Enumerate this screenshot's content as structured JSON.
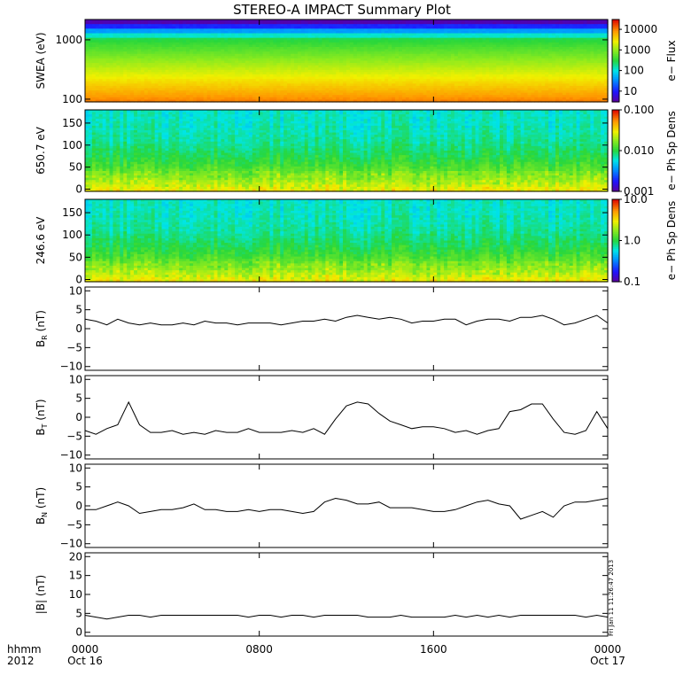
{
  "title": "STEREO-A IMPACT Summary Plot",
  "corner_label": {
    "line1": "hhmm",
    "line2": "2012"
  },
  "time_axis": {
    "ticks": [
      {
        "hhmm": "0000",
        "date": "Oct 16",
        "hours": 0
      },
      {
        "hhmm": "0800",
        "date": "",
        "hours": 8
      },
      {
        "hhmm": "1600",
        "date": "",
        "hours": 16
      },
      {
        "hhmm": "0000",
        "date": "Oct 17",
        "hours": 24
      }
    ],
    "range_hours": [
      0,
      24
    ]
  },
  "timestamp": "Fri Jan 11 11:26:47 2013",
  "chart_data": [
    {
      "type": "heatmap",
      "ylabel": "SWEA (eV)",
      "yscale": "log",
      "ylim": [
        90,
        2200
      ],
      "yticks": [
        "100",
        "1000"
      ],
      "yticks_values": [
        100,
        1000
      ],
      "colorbar": {
        "label": "e− Flux",
        "scale": "log",
        "range": [
          3,
          30000
        ],
        "ticks": [
          "10",
          "100",
          "1000",
          "10000"
        ],
        "tick_values": [
          10,
          100,
          1000,
          10000
        ]
      },
      "note": "energy spectrogram: highest flux at low energy (orange ~90-150 eV), falling to blue/purple near 1500-2000 eV"
    },
    {
      "type": "heatmap",
      "ylabel": "650.7 eV",
      "ylim": [
        -5,
        180
      ],
      "yticks": [
        "0",
        "50",
        "100",
        "150"
      ],
      "yticks_values": [
        0,
        50,
        100,
        150
      ],
      "colorbar": {
        "label": "e− Ph Sp Dens",
        "scale": "log",
        "range": [
          0.001,
          0.1
        ],
        "ticks": [
          "0.001",
          "0.010",
          "0.100"
        ],
        "tick_values": [
          0.001,
          0.01,
          0.1
        ]
      }
    },
    {
      "type": "heatmap",
      "ylabel": "246.6 eV",
      "ylim": [
        -5,
        180
      ],
      "yticks": [
        "0",
        "50",
        "100",
        "150"
      ],
      "yticks_values": [
        0,
        50,
        100,
        150
      ],
      "colorbar": {
        "label": "e− Ph Sp Dens",
        "scale": "log",
        "range": [
          0.1,
          10
        ],
        "ticks": [
          "0.1",
          "1.0",
          "10.0"
        ],
        "tick_values": [
          0.1,
          1,
          10
        ]
      }
    },
    {
      "type": "line",
      "ylabel": "B",
      "ylabel_sub": "R",
      "ylabel_unit": "(nT)",
      "ylim": [
        -11,
        11
      ],
      "yticks": [
        "−10",
        "−5",
        "0",
        "5",
        "10"
      ],
      "yticks_values": [
        -10,
        -5,
        0,
        5,
        10
      ],
      "x": [
        0,
        0.5,
        1,
        1.5,
        2,
        2.5,
        3,
        3.5,
        4,
        4.5,
        5,
        5.5,
        6,
        6.5,
        7,
        7.5,
        8,
        8.5,
        9,
        9.5,
        10,
        10.5,
        11,
        11.5,
        12,
        12.5,
        13,
        13.5,
        14,
        14.5,
        15,
        15.5,
        16,
        16.5,
        17,
        17.5,
        18,
        18.5,
        19,
        19.5,
        20,
        20.5,
        21,
        21.5,
        22,
        22.5,
        23,
        23.5,
        24
      ],
      "y": [
        2.5,
        2.0,
        1.0,
        2.5,
        1.5,
        1.0,
        1.5,
        1.0,
        1.0,
        1.5,
        1.0,
        2.0,
        1.5,
        1.5,
        1.0,
        1.5,
        1.5,
        1.5,
        1.0,
        1.5,
        2.0,
        2.0,
        2.5,
        2.0,
        3.0,
        3.5,
        3.0,
        2.5,
        3.0,
        2.5,
        1.5,
        2.0,
        2.0,
        2.5,
        2.5,
        1.0,
        2.0,
        2.5,
        2.5,
        2.0,
        3.0,
        3.0,
        3.5,
        2.5,
        1.0,
        1.5,
        2.5,
        3.5,
        1.5
      ]
    },
    {
      "type": "line",
      "ylabel": "B",
      "ylabel_sub": "T",
      "ylabel_unit": "(nT)",
      "ylim": [
        -11,
        11
      ],
      "yticks": [
        "−10",
        "−5",
        "0",
        "5",
        "10"
      ],
      "yticks_values": [
        -10,
        -5,
        0,
        5,
        10
      ],
      "x": [
        0,
        0.5,
        1,
        1.5,
        2,
        2.5,
        3,
        3.5,
        4,
        4.5,
        5,
        5.5,
        6,
        6.5,
        7,
        7.5,
        8,
        8.5,
        9,
        9.5,
        10,
        10.5,
        11,
        11.5,
        12,
        12.5,
        13,
        13.5,
        14,
        14.5,
        15,
        15.5,
        16,
        16.5,
        17,
        17.5,
        18,
        18.5,
        19,
        19.5,
        20,
        20.5,
        21,
        21.5,
        22,
        22.5,
        23,
        23.5,
        24
      ],
      "y": [
        -3.5,
        -4.5,
        -3.0,
        -2.0,
        4.0,
        -2.0,
        -4.0,
        -4.0,
        -3.5,
        -4.5,
        -4.0,
        -4.5,
        -3.5,
        -4.0,
        -4.0,
        -3.0,
        -4.0,
        -4.0,
        -4.0,
        -3.5,
        -4.0,
        -3.0,
        -4.5,
        -0.5,
        3.0,
        4.0,
        3.5,
        1.0,
        -1.0,
        -2.0,
        -3.0,
        -2.5,
        -2.5,
        -3.0,
        -4.0,
        -3.5,
        -4.5,
        -3.5,
        -3.0,
        1.5,
        2.0,
        3.5,
        3.5,
        -0.5,
        -4.0,
        -4.5,
        -3.5,
        1.5,
        -3.0
      ]
    },
    {
      "type": "line",
      "ylabel": "B",
      "ylabel_sub": "N",
      "ylabel_unit": "(nT)",
      "ylim": [
        -11,
        11
      ],
      "yticks": [
        "−10",
        "−5",
        "0",
        "5",
        "10"
      ],
      "yticks_values": [
        -10,
        -5,
        0,
        5,
        10
      ],
      "x": [
        0,
        0.5,
        1,
        1.5,
        2,
        2.5,
        3,
        3.5,
        4,
        4.5,
        5,
        5.5,
        6,
        6.5,
        7,
        7.5,
        8,
        8.5,
        9,
        9.5,
        10,
        10.5,
        11,
        11.5,
        12,
        12.5,
        13,
        13.5,
        14,
        14.5,
        15,
        15.5,
        16,
        16.5,
        17,
        17.5,
        18,
        18.5,
        19,
        19.5,
        20,
        20.5,
        21,
        21.5,
        22,
        22.5,
        23,
        23.5,
        24
      ],
      "y": [
        -1.0,
        -1.0,
        0.0,
        1.0,
        0.0,
        -2.0,
        -1.5,
        -1.0,
        -1.0,
        -0.5,
        0.5,
        -1.0,
        -1.0,
        -1.5,
        -1.5,
        -1.0,
        -1.5,
        -1.0,
        -1.0,
        -1.5,
        -2.0,
        -1.5,
        1.0,
        2.0,
        1.5,
        0.5,
        0.5,
        1.0,
        -0.5,
        -0.5,
        -0.5,
        -1.0,
        -1.5,
        -1.5,
        -1.0,
        0.0,
        1.0,
        1.5,
        0.5,
        0.0,
        -3.5,
        -2.5,
        -1.5,
        -3.0,
        0.0,
        1.0,
        1.0,
        1.5,
        2.0
      ]
    },
    {
      "type": "line",
      "ylabel": "|B|",
      "ylabel_sub": "",
      "ylabel_unit": "(nT)",
      "ylim": [
        -1,
        21
      ],
      "yticks": [
        "0",
        "5",
        "10",
        "15",
        "20"
      ],
      "yticks_values": [
        0,
        5,
        10,
        15,
        20
      ],
      "x": [
        0,
        0.5,
        1,
        1.5,
        2,
        2.5,
        3,
        3.5,
        4,
        4.5,
        5,
        5.5,
        6,
        6.5,
        7,
        7.5,
        8,
        8.5,
        9,
        9.5,
        10,
        10.5,
        11,
        11.5,
        12,
        12.5,
        13,
        13.5,
        14,
        14.5,
        15,
        15.5,
        16,
        16.5,
        17,
        17.5,
        18,
        18.5,
        19,
        19.5,
        20,
        20.5,
        21,
        21.5,
        22,
        22.5,
        23,
        23.5,
        24
      ],
      "y": [
        4.5,
        4.0,
        3.5,
        4.0,
        4.5,
        4.5,
        4.0,
        4.5,
        4.5,
        4.5,
        4.5,
        4.5,
        4.5,
        4.5,
        4.5,
        4.0,
        4.5,
        4.5,
        4.0,
        4.5,
        4.5,
        4.0,
        4.5,
        4.5,
        4.5,
        4.5,
        4.0,
        4.0,
        4.0,
        4.5,
        4.0,
        4.0,
        4.0,
        4.0,
        4.5,
        4.0,
        4.5,
        4.0,
        4.5,
        4.0,
        4.5,
        4.5,
        4.5,
        4.5,
        4.5,
        4.5,
        4.0,
        4.5,
        4.0
      ]
    }
  ]
}
